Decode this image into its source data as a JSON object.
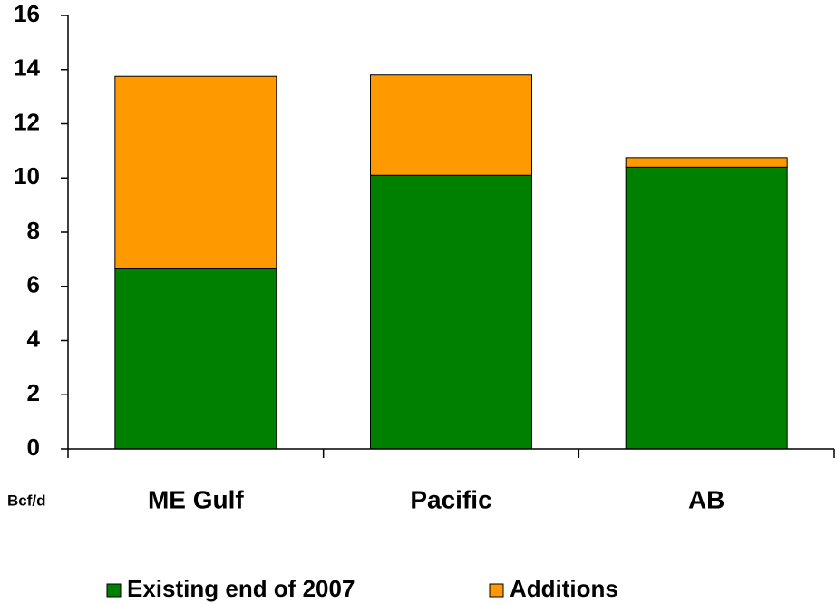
{
  "chart_data": {
    "type": "stacked_bar",
    "y_label": "Bcf/d",
    "categories": [
      "ME Gulf",
      "Pacific",
      "AB"
    ],
    "series": [
      {
        "name": "Existing end of 2007",
        "color": "#008000",
        "values": [
          6.65,
          10.1,
          10.4
        ]
      },
      {
        "name": "Additions",
        "color": "#ff9900",
        "values": [
          7.1,
          3.7,
          0.35
        ]
      }
    ],
    "ylim": [
      0,
      16
    ],
    "yticks": [
      0,
      2,
      4,
      6,
      8,
      10,
      12,
      14,
      16
    ],
    "grid": false
  }
}
